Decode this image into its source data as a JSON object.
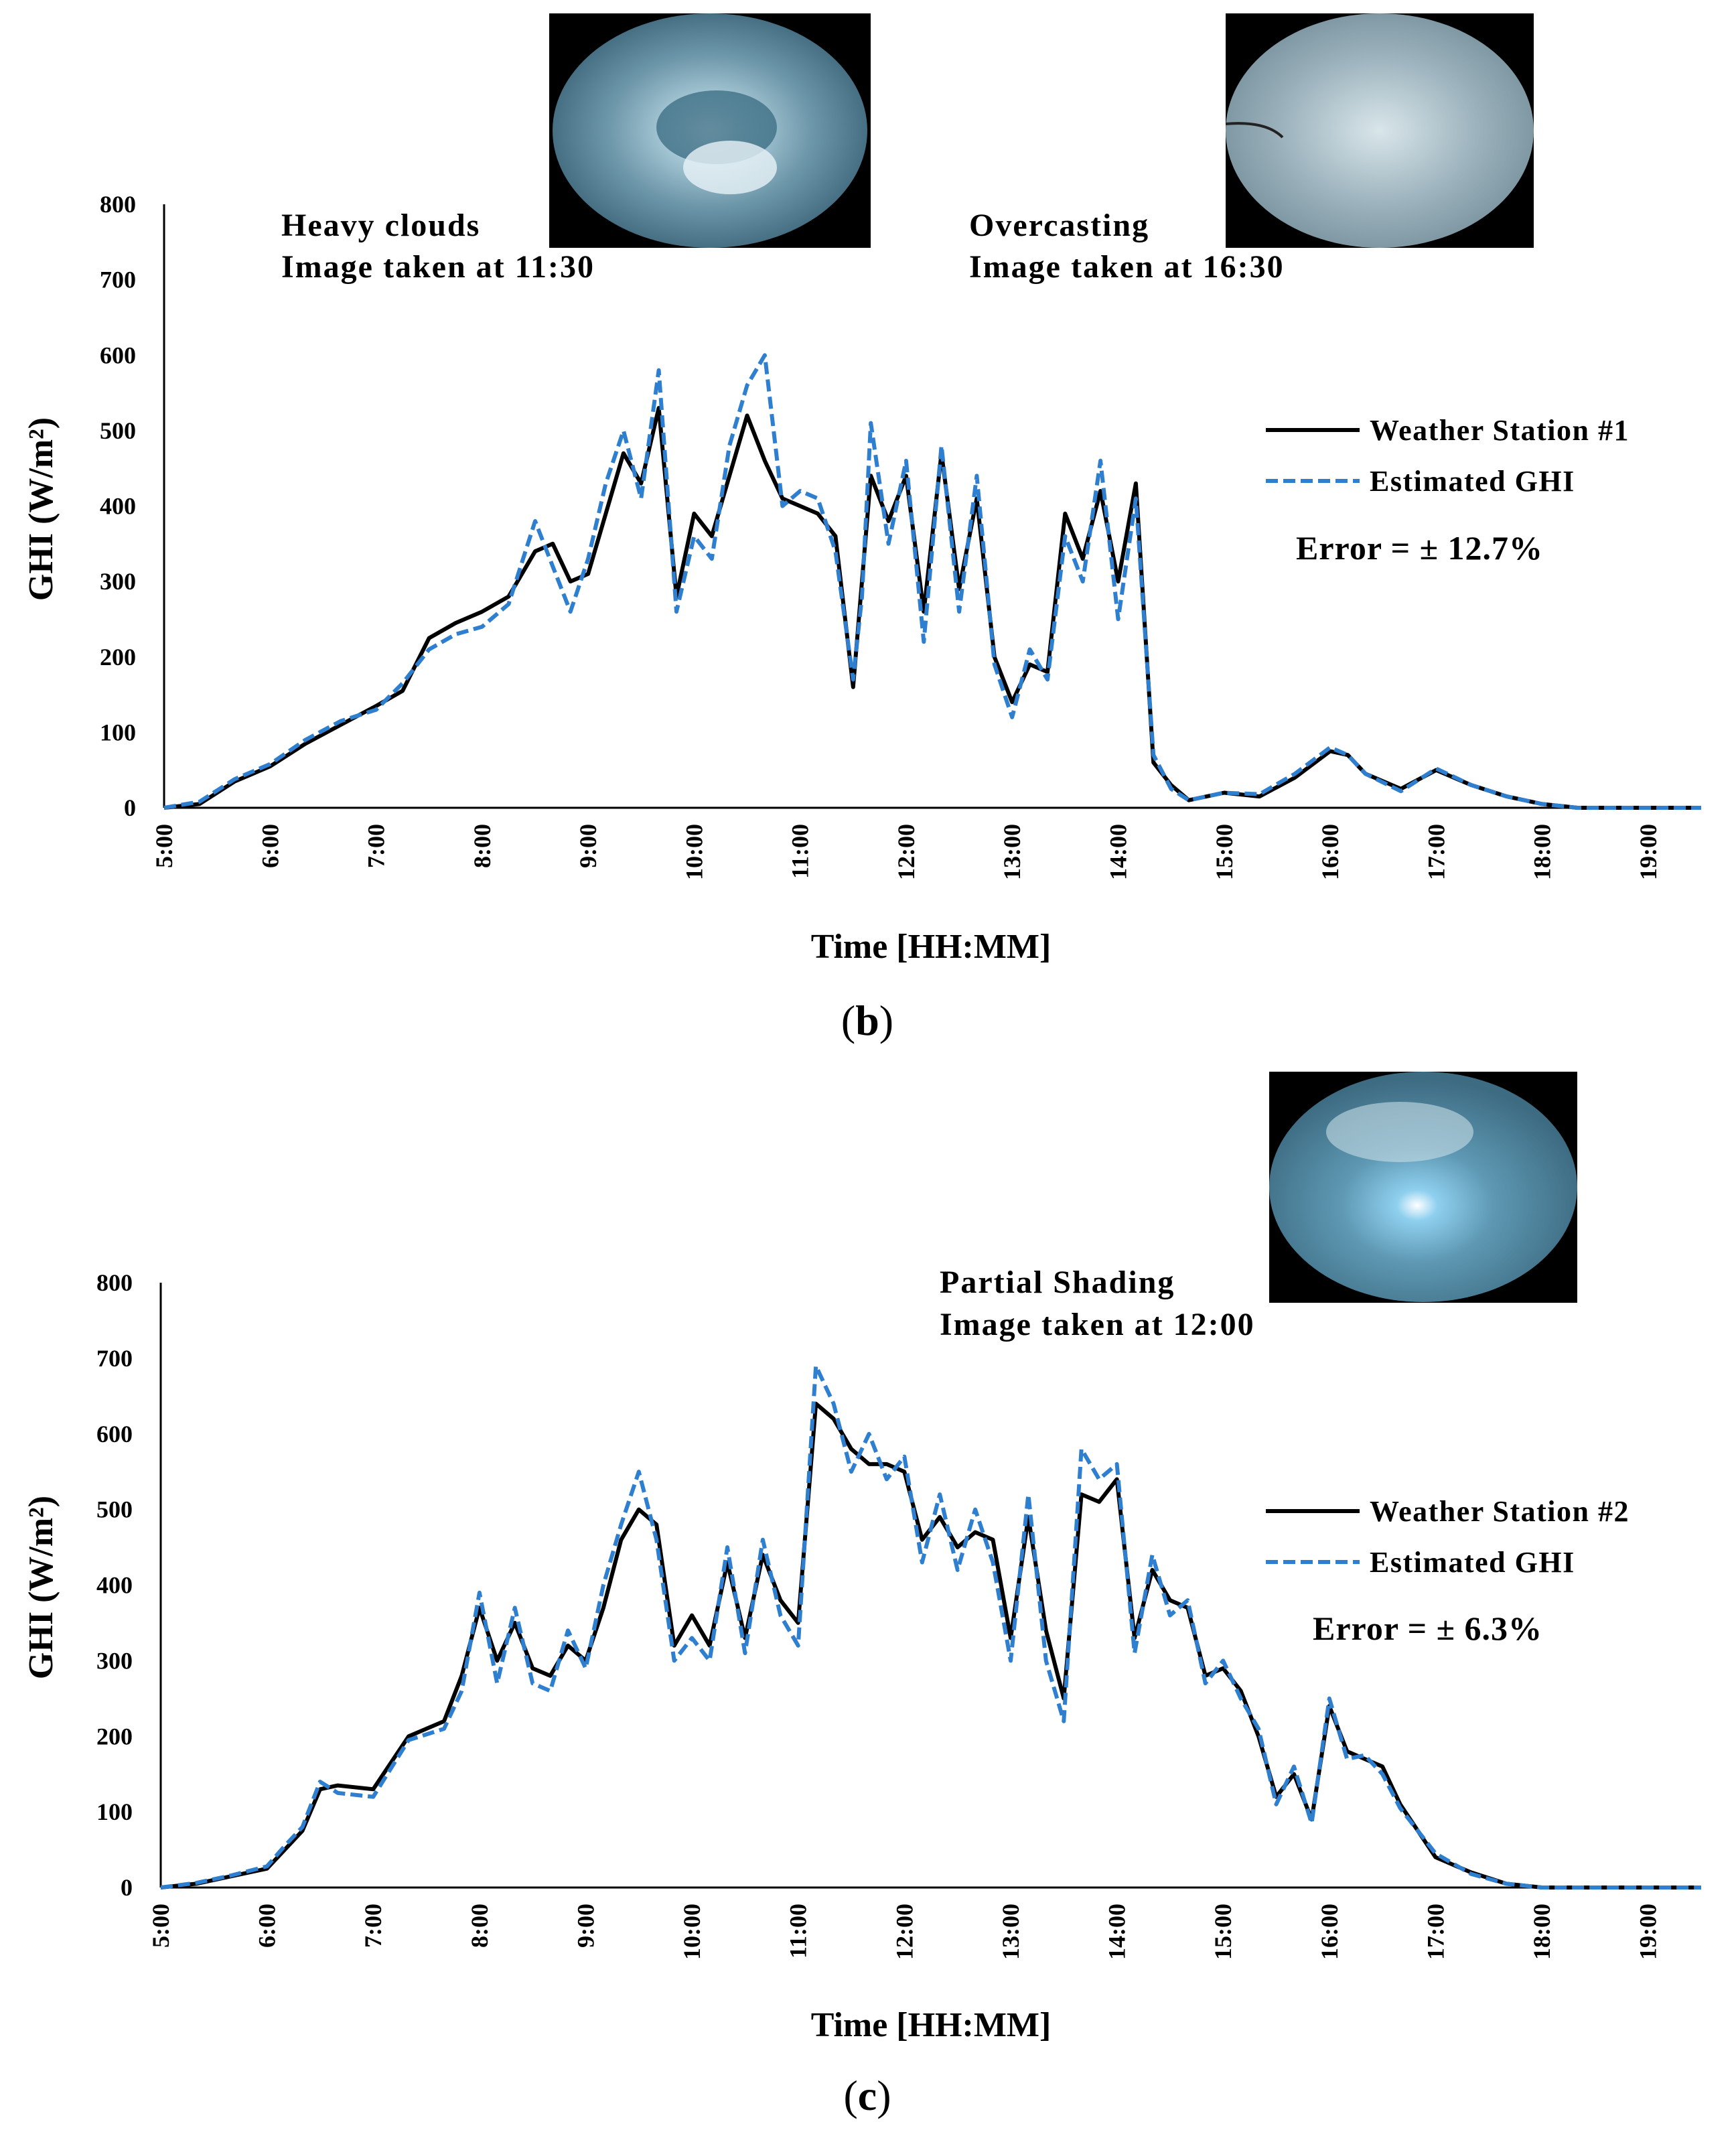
{
  "colors": {
    "station": "#000000",
    "estimated": "#2f7fd0",
    "sky_bg": "#000000",
    "sky_light": "#dfeef5",
    "sky_mid": "#8fb4c4",
    "sky_dark": "#4f7c92"
  },
  "chart_data": [
    {
      "type": "line",
      "panel_label": "b",
      "xlabel": "Time [HH:MM]",
      "ylabel": "GHI (W/m²)",
      "ylim": [
        0,
        800
      ],
      "yticks": [
        "0",
        "100",
        "200",
        "300",
        "400",
        "500",
        "600",
        "700",
        "800"
      ],
      "xlim": [
        "5:00",
        "19:30"
      ],
      "xticks": [
        "5:00",
        "6:00",
        "7:00",
        "8:00",
        "9:00",
        "10:00",
        "11:00",
        "12:00",
        "13:00",
        "14:00",
        "15:00",
        "16:00",
        "17:00",
        "18:00",
        "19:00"
      ],
      "legend_position": "right",
      "error_text": "Error = ± 12.7%",
      "annotations": [
        {
          "line1": "Heavy clouds",
          "line2": "Image taken at 11:30",
          "sky_icon": "heavy-clouds-sky-image"
        },
        {
          "line1": "Overcasting",
          "line2": "Image taken at 16:30",
          "sky_icon": "overcast-sky-image"
        }
      ],
      "x": [
        "5:00",
        "5:20",
        "5:40",
        "6:00",
        "6:20",
        "6:40",
        "7:00",
        "7:15",
        "7:30",
        "7:45",
        "8:00",
        "8:15",
        "8:30",
        "8:40",
        "8:50",
        "9:00",
        "9:10",
        "9:20",
        "9:30",
        "9:40",
        "9:50",
        "10:00",
        "10:10",
        "10:20",
        "10:30",
        "10:40",
        "10:50",
        "11:00",
        "11:10",
        "11:20",
        "11:30",
        "11:35",
        "11:40",
        "11:50",
        "12:00",
        "12:10",
        "12:20",
        "12:30",
        "12:40",
        "12:50",
        "13:00",
        "13:10",
        "13:20",
        "13:30",
        "13:40",
        "13:50",
        "14:00",
        "14:10",
        "14:20",
        "14:30",
        "14:40",
        "15:00",
        "15:20",
        "15:40",
        "16:00",
        "16:10",
        "16:20",
        "16:40",
        "17:00",
        "17:20",
        "17:40",
        "18:00",
        "18:20",
        "19:00",
        "19:30"
      ],
      "series": [
        {
          "name": "Weather Station #1",
          "style": "solid",
          "values": [
            0,
            5,
            35,
            55,
            85,
            110,
            135,
            155,
            225,
            245,
            260,
            280,
            340,
            350,
            300,
            310,
            390,
            470,
            430,
            530,
            280,
            390,
            360,
            440,
            520,
            460,
            410,
            400,
            390,
            360,
            160,
            300,
            440,
            380,
            440,
            260,
            470,
            290,
            410,
            200,
            140,
            190,
            180,
            390,
            330,
            420,
            300,
            430,
            60,
            30,
            10,
            20,
            15,
            40,
            75,
            70,
            45,
            25,
            50,
            30,
            15,
            5,
            0,
            0,
            0
          ]
        },
        {
          "name": "Estimated GHI",
          "style": "dashed",
          "values": [
            0,
            8,
            38,
            58,
            90,
            115,
            130,
            165,
            210,
            230,
            240,
            270,
            380,
            320,
            260,
            330,
            430,
            500,
            410,
            580,
            260,
            360,
            330,
            480,
            560,
            600,
            400,
            420,
            410,
            340,
            170,
            280,
            510,
            350,
            460,
            220,
            480,
            260,
            440,
            190,
            120,
            210,
            170,
            360,
            300,
            460,
            250,
            410,
            70,
            25,
            10,
            20,
            18,
            45,
            80,
            70,
            45,
            22,
            52,
            30,
            15,
            5,
            0,
            0,
            0
          ]
        }
      ]
    },
    {
      "type": "line",
      "panel_label": "c",
      "xlabel": "Time [HH:MM]",
      "ylabel": "GHI (W/m²)",
      "ylim": [
        0,
        800
      ],
      "yticks": [
        "0",
        "100",
        "200",
        "300",
        "400",
        "500",
        "600",
        "700",
        "800"
      ],
      "xlim": [
        "5:00",
        "19:30"
      ],
      "xticks": [
        "5:00",
        "6:00",
        "7:00",
        "8:00",
        "9:00",
        "10:00",
        "11:00",
        "12:00",
        "13:00",
        "14:00",
        "15:00",
        "16:00",
        "17:00",
        "18:00",
        "19:00"
      ],
      "legend_position": "right",
      "error_text": "Error = ± 6.3%",
      "annotations": [
        {
          "line1": "Partial Shading",
          "line2": "Image taken at 12:00",
          "sky_icon": "partial-shading-sky-image"
        }
      ],
      "x": [
        "5:00",
        "5:20",
        "5:40",
        "6:00",
        "6:10",
        "6:20",
        "6:30",
        "6:40",
        "7:00",
        "7:20",
        "7:40",
        "7:50",
        "8:00",
        "8:10",
        "8:20",
        "8:30",
        "8:40",
        "8:50",
        "9:00",
        "9:10",
        "9:20",
        "9:30",
        "9:40",
        "9:50",
        "10:00",
        "10:10",
        "10:20",
        "10:30",
        "10:40",
        "10:50",
        "11:00",
        "11:10",
        "11:20",
        "11:30",
        "11:40",
        "11:50",
        "12:00",
        "12:10",
        "12:20",
        "12:30",
        "12:40",
        "12:50",
        "13:00",
        "13:10",
        "13:20",
        "13:30",
        "13:40",
        "13:50",
        "14:00",
        "14:10",
        "14:20",
        "14:30",
        "14:40",
        "14:50",
        "15:00",
        "15:10",
        "15:20",
        "15:30",
        "15:40",
        "15:50",
        "16:00",
        "16:10",
        "16:20",
        "16:30",
        "16:40",
        "17:00",
        "17:20",
        "17:40",
        "18:00",
        "18:30",
        "19:00",
        "19:30"
      ],
      "series": [
        {
          "name": "Weather Station #2",
          "style": "solid",
          "values": [
            0,
            5,
            15,
            25,
            50,
            75,
            130,
            135,
            130,
            200,
            220,
            280,
            370,
            300,
            350,
            290,
            280,
            320,
            300,
            370,
            460,
            500,
            480,
            320,
            360,
            320,
            430,
            330,
            440,
            380,
            350,
            640,
            620,
            580,
            560,
            560,
            550,
            460,
            490,
            450,
            470,
            460,
            330,
            490,
            340,
            250,
            520,
            510,
            540,
            330,
            420,
            380,
            370,
            280,
            290,
            260,
            200,
            120,
            150,
            90,
            240,
            180,
            170,
            160,
            110,
            40,
            20,
            5,
            0,
            0,
            0,
            0
          ]
        },
        {
          "name": "Estimated GHI",
          "style": "dashed",
          "values": [
            0,
            6,
            16,
            28,
            55,
            80,
            140,
            125,
            120,
            195,
            210,
            260,
            390,
            270,
            370,
            270,
            260,
            340,
            290,
            400,
            480,
            550,
            460,
            300,
            330,
            300,
            450,
            310,
            460,
            360,
            320,
            690,
            640,
            550,
            600,
            540,
            570,
            430,
            520,
            420,
            500,
            430,
            300,
            520,
            300,
            220,
            580,
            540,
            560,
            310,
            440,
            360,
            380,
            270,
            300,
            250,
            210,
            110,
            160,
            85,
            250,
            170,
            175,
            150,
            105,
            45,
            18,
            5,
            0,
            0,
            0,
            0
          ]
        }
      ]
    }
  ]
}
